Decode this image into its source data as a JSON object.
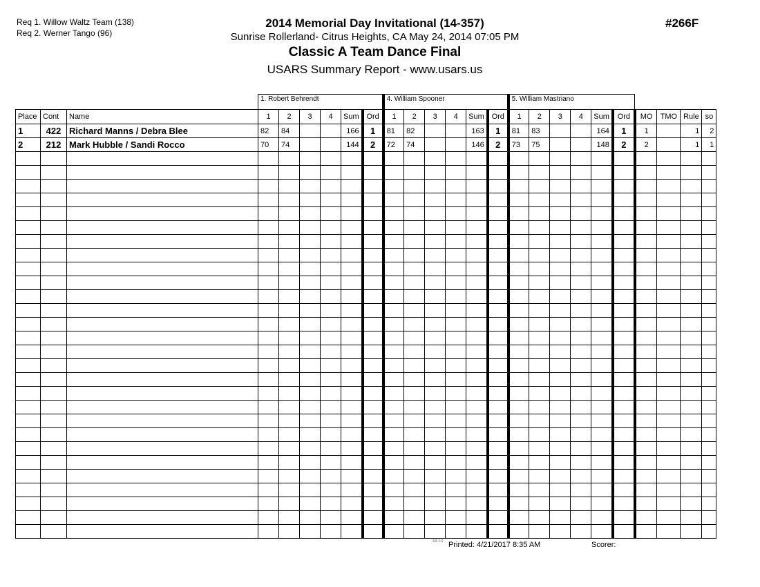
{
  "requests": [
    "Req  1.  Willow Waltz Team (138)",
    "Req  2.  Werner Tango (96)"
  ],
  "event_title": "2014  Memorial Day Invitational (14-357)",
  "event_number": "#266F",
  "location": "Sunrise Rollerland- Citrus Heights, CA  May 24, 2014  07:05 PM",
  "event_name": "Classic A Team Dance Final",
  "report_title": "USARS Summary Report - www.usars.us",
  "judges": [
    "1.  Robert Behrendt",
    "4.  William Spooner",
    "5.  William Mastriano"
  ],
  "columns": {
    "place": "Place",
    "cont": "Cont",
    "name": "Name",
    "judge_cols": [
      "1",
      "2",
      "3",
      "4",
      "Sum",
      "Ord"
    ],
    "mo": "MO",
    "tmo": "TMO",
    "rule": "Rule",
    "so": "so"
  },
  "rows": [
    {
      "place": "1",
      "cont": "422",
      "name": "Richard Manns / Debra Blee",
      "judges": [
        [
          "82",
          "84",
          "",
          "",
          "166",
          "1"
        ],
        [
          "81",
          "82",
          "",
          "",
          "163",
          "1"
        ],
        [
          "81",
          "83",
          "",
          "",
          "164",
          "1"
        ]
      ],
      "mo": "1",
      "tmo": "",
      "rule": "1",
      "so": "2"
    },
    {
      "place": "2",
      "cont": "212",
      "name": "Mark Hubble / Sandi Rocco",
      "judges": [
        [
          "70",
          "74",
          "",
          "",
          "144",
          "2"
        ],
        [
          "72",
          "74",
          "",
          "",
          "146",
          "2"
        ],
        [
          "73",
          "75",
          "",
          "",
          "148",
          "2"
        ]
      ],
      "mo": "2",
      "tmo": "",
      "rule": "1",
      "so": "1"
    }
  ],
  "footer": {
    "version": "3.8.1.6",
    "printed": "Printed:  4/21/2017  8:35 AM",
    "scorer": "Scorer:"
  }
}
